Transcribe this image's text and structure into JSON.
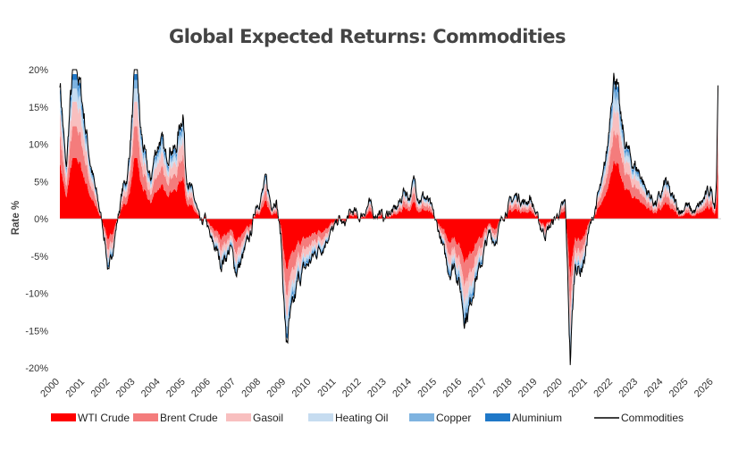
{
  "chart_data": {
    "type": "area",
    "stacked": true,
    "title": "Global Expected Returns: Commodities",
    "ylabel": "Rate %",
    "xlabel": "",
    "xlim": [
      2000,
      2026.3
    ],
    "ylim": [
      -20,
      20
    ],
    "y_ticks": [
      20,
      15,
      10,
      5,
      0,
      -5,
      -10,
      -15,
      -20
    ],
    "y_tick_labels": [
      "20%",
      "15%",
      "10%",
      "5%",
      "0%",
      "-5%",
      "-10%",
      "-15%",
      "-20%"
    ],
    "x_ticks": [
      2000,
      2001,
      2002,
      2003,
      2004,
      2005,
      2006,
      2007,
      2008,
      2009,
      2010,
      2011,
      2012,
      2013,
      2014,
      2015,
      2016,
      2017,
      2018,
      2019,
      2020,
      2021,
      2022,
      2023,
      2024,
      2025,
      2026
    ],
    "x_tick_labels": [
      "2000",
      "2001",
      "2002",
      "2003",
      "2004",
      "2005",
      "2006",
      "2007",
      "2008",
      "2009",
      "2010",
      "2011",
      "2012",
      "2013",
      "2014",
      "2015",
      "2016",
      "2017",
      "2018",
      "2019",
      "2020",
      "2021",
      "2022",
      "2023",
      "2024",
      "2025",
      "2026"
    ],
    "legend_position": "bottom",
    "series": [
      {
        "name": "WTI Crude",
        "kind": "area",
        "color": "#ff0000",
        "share": 0.42
      },
      {
        "name": "Brent Crude",
        "kind": "area",
        "color": "#f47c7c",
        "share": 0.22
      },
      {
        "name": "Gasoil",
        "kind": "area",
        "color": "#f8bfbf",
        "share": 0.17
      },
      {
        "name": "Heating Oil",
        "kind": "area",
        "color": "#c6dcf0",
        "share": 0.09
      },
      {
        "name": "Copper",
        "kind": "area",
        "color": "#7eb3e0",
        "share": 0.06
      },
      {
        "name": "Aluminium",
        "kind": "area",
        "color": "#1f78c8",
        "share": 0.04
      },
      {
        "name": "Commodities",
        "kind": "line",
        "color": "#000000"
      }
    ],
    "commodities_path": [
      [
        2000.0,
        19
      ],
      [
        2000.1,
        14
      ],
      [
        2000.25,
        6
      ],
      [
        2000.4,
        15
      ],
      [
        2000.6,
        22
      ],
      [
        2000.8,
        18
      ],
      [
        2001.0,
        13
      ],
      [
        2001.2,
        8
      ],
      [
        2001.4,
        4
      ],
      [
        2001.6,
        1
      ],
      [
        2001.8,
        -3
      ],
      [
        2001.95,
        -8
      ],
      [
        2002.1,
        -4
      ],
      [
        2002.3,
        0
      ],
      [
        2002.5,
        4
      ],
      [
        2002.7,
        6
      ],
      [
        2002.9,
        15
      ],
      [
        2003.05,
        22
      ],
      [
        2003.2,
        12
      ],
      [
        2003.4,
        8
      ],
      [
        2003.6,
        5
      ],
      [
        2003.8,
        9
      ],
      [
        2004.0,
        11
      ],
      [
        2004.2,
        8
      ],
      [
        2004.4,
        10
      ],
      [
        2004.6,
        9
      ],
      [
        2004.8,
        13
      ],
      [
        2004.9,
        15
      ],
      [
        2005.0,
        7
      ],
      [
        2005.2,
        4
      ],
      [
        2005.4,
        2
      ],
      [
        2005.6,
        -1
      ],
      [
        2005.8,
        0
      ],
      [
        2006.0,
        -3
      ],
      [
        2006.2,
        -4
      ],
      [
        2006.4,
        -6
      ],
      [
        2006.6,
        -5
      ],
      [
        2006.8,
        -4
      ],
      [
        2007.0,
        -7
      ],
      [
        2007.2,
        -6
      ],
      [
        2007.4,
        -4
      ],
      [
        2007.6,
        -2
      ],
      [
        2007.8,
        2
      ],
      [
        2008.0,
        3
      ],
      [
        2008.2,
        5
      ],
      [
        2008.4,
        2
      ],
      [
        2008.6,
        3
      ],
      [
        2008.8,
        -3
      ],
      [
        2009.0,
        -17
      ],
      [
        2009.15,
        -14
      ],
      [
        2009.3,
        -12
      ],
      [
        2009.5,
        -8
      ],
      [
        2009.7,
        -7
      ],
      [
        2009.9,
        -6
      ],
      [
        2010.1,
        -5
      ],
      [
        2010.3,
        -4
      ],
      [
        2010.5,
        -3.5
      ],
      [
        2010.7,
        -2
      ],
      [
        2010.9,
        -1.5
      ],
      [
        2011.1,
        0
      ],
      [
        2011.3,
        -1
      ],
      [
        2011.5,
        0.5
      ],
      [
        2011.7,
        1
      ],
      [
        2011.9,
        0
      ],
      [
        2012.1,
        1
      ],
      [
        2012.3,
        2
      ],
      [
        2012.5,
        0.5
      ],
      [
        2012.7,
        1
      ],
      [
        2012.9,
        0
      ],
      [
        2013.1,
        1
      ],
      [
        2013.3,
        1
      ],
      [
        2013.5,
        2
      ],
      [
        2013.7,
        4
      ],
      [
        2013.9,
        3
      ],
      [
        2014.1,
        5
      ],
      [
        2014.3,
        3
      ],
      [
        2014.5,
        3
      ],
      [
        2014.7,
        2
      ],
      [
        2014.9,
        0
      ],
      [
        2015.1,
        -2
      ],
      [
        2015.3,
        -5
      ],
      [
        2015.5,
        -7
      ],
      [
        2015.7,
        -6
      ],
      [
        2015.9,
        -9
      ],
      [
        2016.1,
        -13
      ],
      [
        2016.3,
        -12
      ],
      [
        2016.5,
        -8
      ],
      [
        2016.7,
        -7
      ],
      [
        2016.9,
        -4
      ],
      [
        2017.1,
        -2
      ],
      [
        2017.3,
        -3
      ],
      [
        2017.5,
        -1
      ],
      [
        2017.7,
        1
      ],
      [
        2017.9,
        2
      ],
      [
        2018.1,
        3
      ],
      [
        2018.3,
        3
      ],
      [
        2018.5,
        2
      ],
      [
        2018.7,
        3
      ],
      [
        2018.9,
        1
      ],
      [
        2019.1,
        -1
      ],
      [
        2019.3,
        -2
      ],
      [
        2019.5,
        -1
      ],
      [
        2019.7,
        0
      ],
      [
        2019.9,
        1
      ],
      [
        2020.1,
        2
      ],
      [
        2020.2,
        -8
      ],
      [
        2020.3,
        -19
      ],
      [
        2020.4,
        -12
      ],
      [
        2020.5,
        -6
      ],
      [
        2020.7,
        -7
      ],
      [
        2020.9,
        -5
      ],
      [
        2021.0,
        -2
      ],
      [
        2021.2,
        0
      ],
      [
        2021.4,
        3
      ],
      [
        2021.6,
        5
      ],
      [
        2021.8,
        10
      ],
      [
        2021.95,
        18
      ],
      [
        2022.1,
        20
      ],
      [
        2022.3,
        13
      ],
      [
        2022.5,
        10
      ],
      [
        2022.7,
        8
      ],
      [
        2022.9,
        7
      ],
      [
        2023.1,
        6
      ],
      [
        2023.3,
        4
      ],
      [
        2023.5,
        3
      ],
      [
        2023.7,
        2
      ],
      [
        2023.9,
        3
      ],
      [
        2024.1,
        5
      ],
      [
        2024.3,
        3
      ],
      [
        2024.5,
        2
      ],
      [
        2024.7,
        1
      ],
      [
        2024.9,
        2
      ],
      [
        2025.1,
        1
      ],
      [
        2025.3,
        1
      ],
      [
        2025.5,
        2
      ],
      [
        2025.7,
        3
      ],
      [
        2025.9,
        4
      ],
      [
        2026.05,
        2
      ],
      [
        2026.12,
        6
      ],
      [
        2026.18,
        20
      ]
    ]
  }
}
